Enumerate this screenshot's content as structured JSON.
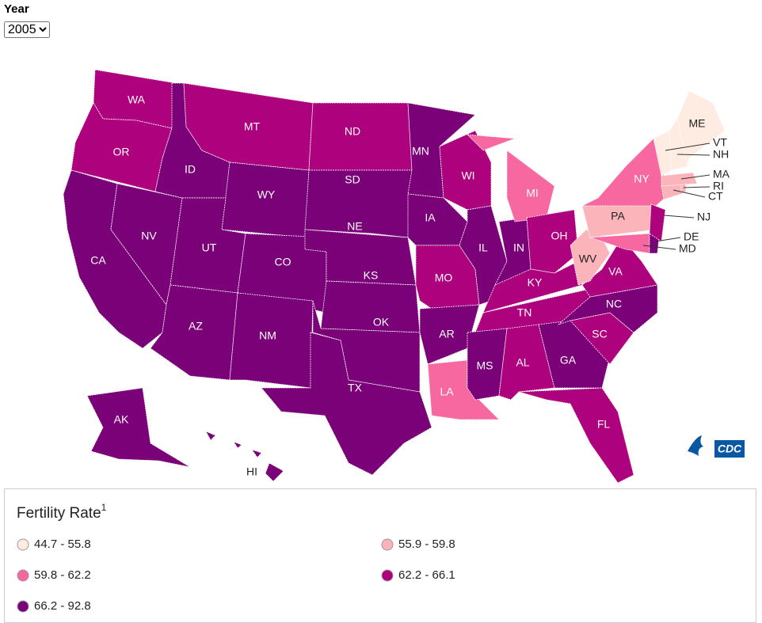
{
  "year_label": "Year",
  "year_select": "2005",
  "map": {
    "states": [
      {
        "label": "WA",
        "color": "#ae017e"
      },
      {
        "label": "OR",
        "color": "#ae017e"
      },
      {
        "label": "CA",
        "color": "#7a0177"
      },
      {
        "label": "NV",
        "color": "#7a0177"
      },
      {
        "label": "ID",
        "color": "#7a0177"
      },
      {
        "label": "MT",
        "color": "#ae017e"
      },
      {
        "label": "WY",
        "color": "#7a0177"
      },
      {
        "label": "UT",
        "color": "#7a0177"
      },
      {
        "label": "CO",
        "color": "#7a0177"
      },
      {
        "label": "AZ",
        "color": "#7a0177"
      },
      {
        "label": "NM",
        "color": "#7a0177"
      },
      {
        "label": "ND",
        "color": "#ae017e"
      },
      {
        "label": "SD",
        "color": "#7a0177"
      },
      {
        "label": "NE",
        "color": "#7a0177"
      },
      {
        "label": "KS",
        "color": "#7a0177"
      },
      {
        "label": "OK",
        "color": "#7a0177"
      },
      {
        "label": "TX",
        "color": "#7a0177"
      },
      {
        "label": "MN",
        "color": "#7a0177"
      },
      {
        "label": "IA",
        "color": "#7a0177"
      },
      {
        "label": "MO",
        "color": "#ae017e"
      },
      {
        "label": "AR",
        "color": "#7a0177"
      },
      {
        "label": "LA",
        "color": "#f768a1"
      },
      {
        "label": "WI",
        "color": "#ae017e"
      },
      {
        "label": "IL",
        "color": "#7a0177"
      },
      {
        "label": "IN",
        "color": "#7a0177"
      },
      {
        "label": "MI",
        "color": "#f768a1"
      },
      {
        "label": "OH",
        "color": "#ae017e"
      },
      {
        "label": "KY",
        "color": "#ae017e"
      },
      {
        "label": "TN",
        "color": "#ae017e"
      },
      {
        "label": "MS",
        "color": "#7a0177"
      },
      {
        "label": "AL",
        "color": "#ae017e"
      },
      {
        "label": "GA",
        "color": "#7a0177"
      },
      {
        "label": "FL",
        "color": "#ae017e"
      },
      {
        "label": "SC",
        "color": "#ae017e"
      },
      {
        "label": "NC",
        "color": "#7a0177"
      },
      {
        "label": "VA",
        "color": "#ae017e"
      },
      {
        "label": "WV",
        "color": "#fbb4b9"
      },
      {
        "label": "PA",
        "color": "#fbb4b9"
      },
      {
        "label": "NY",
        "color": "#f768a1"
      },
      {
        "label": "MD",
        "color": "#f768a1"
      },
      {
        "label": "DE",
        "color": "#7a0177"
      },
      {
        "label": "NJ",
        "color": "#ae017e"
      },
      {
        "label": "CT",
        "color": "#fbb4b9"
      },
      {
        "label": "RI",
        "color": "#fbb4b9"
      },
      {
        "label": "MA",
        "color": "#fbb4b9"
      },
      {
        "label": "VT",
        "color": "#feebe2"
      },
      {
        "label": "NH",
        "color": "#feebe2"
      },
      {
        "label": "ME",
        "color": "#feebe2"
      },
      {
        "label": "AK",
        "color": "#7a0177"
      },
      {
        "label": "HI",
        "color": "#7a0177"
      }
    ]
  },
  "legend": {
    "title": "Fertility Rate",
    "footnote": "1",
    "items": [
      {
        "label": "44.7 - 55.8",
        "color": "#feebe2"
      },
      {
        "label": "55.9 - 59.8",
        "color": "#fbb4b9"
      },
      {
        "label": "59.8 - 62.2",
        "color": "#f768a1"
      },
      {
        "label": "62.2 - 66.1",
        "color": "#ae017e"
      },
      {
        "label": "66.2 - 92.8",
        "color": "#7a0177"
      }
    ]
  },
  "logo": "CDC"
}
